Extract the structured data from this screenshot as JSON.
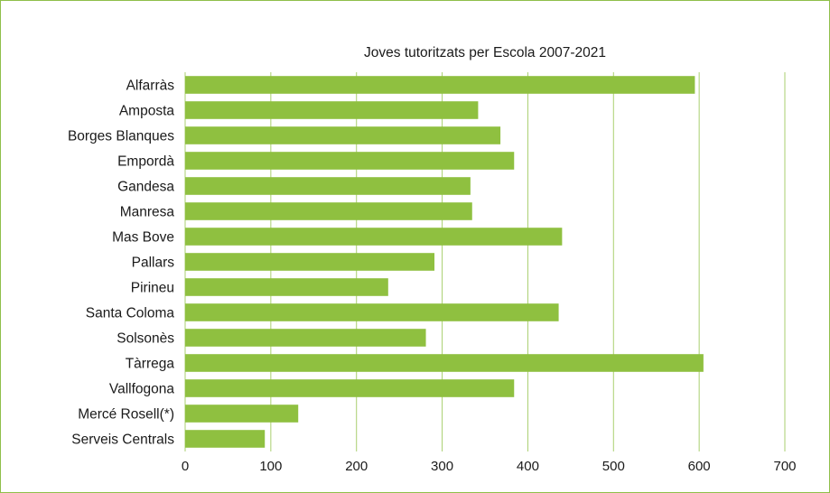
{
  "chart_data": {
    "type": "bar",
    "orientation": "horizontal",
    "title": "Joves tutoritzats per Escola 2007-2021",
    "xlabel": "",
    "ylabel": "",
    "categories": [
      "Alfarràs",
      "Amposta",
      "Borges Blanques",
      "Empordà",
      "Gandesa",
      "Manresa",
      "Mas Bove",
      "Pallars",
      "Pirineu",
      "Santa Coloma",
      "Solsonès",
      "Tàrrega",
      "Vallfogona",
      "Mercé Rosell(*)",
      "Serveis Centrals"
    ],
    "values": [
      595,
      342,
      368,
      384,
      333,
      335,
      440,
      291,
      237,
      436,
      281,
      605,
      384,
      132,
      93
    ],
    "xlim": [
      0,
      700
    ],
    "xticks": [
      "0",
      "100",
      "200",
      "300",
      "400",
      "500",
      "600",
      "700"
    ],
    "grid": "vertical",
    "legend": "none",
    "bar_color": "#8fc040",
    "grid_color": "#a9cf6f",
    "border_color": "#8fbf4a"
  }
}
